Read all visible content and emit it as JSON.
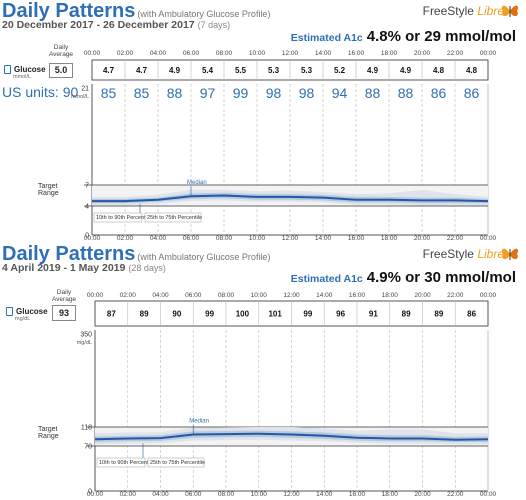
{
  "chart_data": [
    {
      "type": "line",
      "title": "Daily Patterns",
      "subtitle": "(with Ambulatory Glucose Profile)",
      "date_range": "20 December 2017 - 26 December 2017",
      "days": "(7 days)",
      "brand": "FreeStyle",
      "brand_libre": "Libre",
      "a1c_label": "Estimated A1c",
      "a1c_value": "4.8% or 29 mmol/mol",
      "daily_average_label": [
        "Daily",
        "Average"
      ],
      "daily_average": "5.0",
      "row_label": "Glucose",
      "row_unit": "mmol/L",
      "x_ticks": [
        "00:00",
        "02:00",
        "04:00",
        "06:00",
        "08:00",
        "10:00",
        "12:00",
        "14:00",
        "16:00",
        "18:00",
        "20:00",
        "22:00",
        "00:00"
      ],
      "hourly_labels": [
        "4.7",
        "4.7",
        "4.9",
        "5.4",
        "5.5",
        "5.3",
        "5.3",
        "5.2",
        "4.9",
        "4.9",
        "4.8",
        "4.8"
      ],
      "us_units_label": "US units: 90",
      "us_values": [
        "85",
        "85",
        "88",
        "97",
        "99",
        "98",
        "98",
        "94",
        "88",
        "88",
        "86",
        "86"
      ],
      "y_ticks": [
        "21",
        "7",
        "4",
        "0"
      ],
      "y_unit": "mmol/L",
      "ylim": [
        0,
        21
      ],
      "target_range": [
        4,
        7
      ],
      "target_label": [
        "Target",
        "Range"
      ],
      "target_top_label": "7",
      "median_label": "Median",
      "legend": [
        "10th to 90th Percentile",
        "25th to 75th Percentile"
      ],
      "series": [
        {
          "x": [
            0,
            2,
            4,
            6,
            8,
            10,
            12,
            14,
            16,
            18,
            20,
            22,
            24
          ],
          "median": [
            4.7,
            4.7,
            4.9,
            5.4,
            5.5,
            5.3,
            5.3,
            5.2,
            4.9,
            4.9,
            4.8,
            4.8,
            4.7
          ],
          "p25": [
            4.4,
            4.4,
            4.6,
            5.0,
            5.1,
            4.9,
            4.9,
            4.8,
            4.5,
            4.5,
            4.4,
            4.4,
            4.4
          ],
          "p75": [
            5.0,
            5.0,
            5.2,
            5.8,
            5.9,
            5.7,
            5.7,
            5.6,
            5.3,
            5.3,
            5.2,
            5.2,
            5.0
          ],
          "p10": [
            4.1,
            4.1,
            4.3,
            4.7,
            4.8,
            4.6,
            4.6,
            4.5,
            4.2,
            4.2,
            4.1,
            4.1,
            4.1
          ],
          "p90": [
            5.3,
            5.3,
            5.6,
            6.3,
            6.3,
            6.1,
            6.2,
            6.0,
            5.7,
            5.8,
            6.3,
            5.7,
            5.3
          ]
        }
      ]
    },
    {
      "type": "line",
      "title": "Daily Patterns",
      "subtitle": "(with Ambulatory Glucose Profile)",
      "date_range": "4 April 2019 - 1 May 2019",
      "days": "(28 days)",
      "brand": "FreeStyle",
      "brand_libre": "Libre",
      "a1c_label": "Estimated A1c",
      "a1c_value": "4.9% or 30 mmol/mol",
      "daily_average_label": [
        "Daily",
        "Average"
      ],
      "daily_average": "93",
      "row_label": "Glucose",
      "row_unit": "mg/dL",
      "x_ticks": [
        "00:00",
        "02:00",
        "04:00",
        "06:00",
        "08:00",
        "10:00",
        "12:00",
        "14:00",
        "16:00",
        "18:00",
        "20:00",
        "22:00",
        "00:00"
      ],
      "hourly_labels": [
        "87",
        "89",
        "90",
        "99",
        "100",
        "101",
        "99",
        "96",
        "91",
        "89",
        "89",
        "86"
      ],
      "y_ticks": [
        "350",
        "118",
        "70",
        "0"
      ],
      "y_unit": "mg/dL",
      "ylim": [
        0,
        350
      ],
      "target_range": [
        70,
        118
      ],
      "target_top_label": "118",
      "target_label": [
        "Target",
        "Range"
      ],
      "median_label": "Median",
      "legend": [
        "10th to 90th Percentile",
        "25th to 75th Percentile"
      ],
      "series": [
        {
          "x": [
            0,
            2,
            4,
            6,
            8,
            10,
            12,
            14,
            16,
            18,
            20,
            22,
            24
          ],
          "median": [
            87,
            89,
            90,
            99,
            100,
            101,
            99,
            96,
            91,
            89,
            89,
            86,
            87
          ],
          "p25": [
            80,
            82,
            83,
            91,
            92,
            93,
            91,
            88,
            84,
            82,
            82,
            80,
            80
          ],
          "p75": [
            94,
            96,
            97,
            107,
            108,
            109,
            107,
            104,
            99,
            97,
            97,
            93,
            94
          ],
          "p10": [
            74,
            76,
            77,
            84,
            85,
            86,
            84,
            82,
            78,
            76,
            76,
            74,
            74
          ],
          "p90": [
            102,
            104,
            105,
            116,
            117,
            118,
            118,
            115,
            108,
            112,
            112,
            102,
            102
          ]
        }
      ]
    }
  ]
}
